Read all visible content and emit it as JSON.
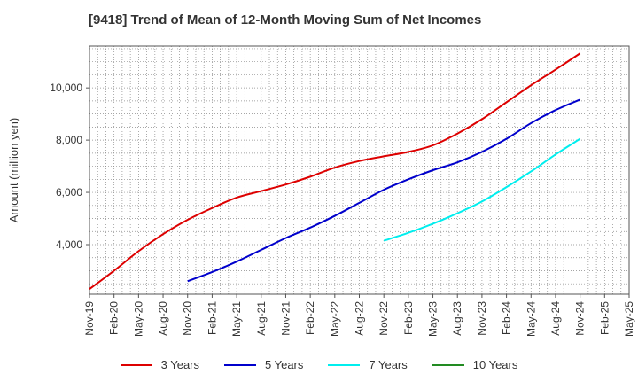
{
  "chart_data": {
    "type": "line",
    "title": "[9418]  Trend of Mean of 12-Month Moving Sum of Net Incomes",
    "ylabel": "Amount (million yen)",
    "xlabel": "",
    "x_ticks": [
      "Nov-19",
      "Feb-20",
      "May-20",
      "Aug-20",
      "Nov-20",
      "Feb-21",
      "May-21",
      "Aug-21",
      "Nov-21",
      "Feb-22",
      "May-22",
      "Aug-22",
      "Nov-22",
      "Feb-23",
      "May-23",
      "Aug-23",
      "Nov-23",
      "Feb-24",
      "May-24",
      "Aug-24",
      "Nov-24",
      "Feb-25",
      "May-25"
    ],
    "y_ticks": [
      4000,
      6000,
      8000,
      10000
    ],
    "y_tick_labels": [
      "4,000",
      "6,000",
      "8,000",
      "10,000"
    ],
    "ylim": [
      2100,
      11600
    ],
    "grid": true,
    "legend_position": "bottom",
    "series": [
      {
        "name": "3 Years",
        "color": "#dd0000",
        "points": [
          [
            "Nov-19",
            2300
          ],
          [
            "Feb-20",
            3000
          ],
          [
            "May-20",
            3750
          ],
          [
            "Aug-20",
            4400
          ],
          [
            "Nov-20",
            4950
          ],
          [
            "Feb-21",
            5400
          ],
          [
            "May-21",
            5800
          ],
          [
            "Aug-21",
            6050
          ],
          [
            "Nov-21",
            6300
          ],
          [
            "Feb-22",
            6600
          ],
          [
            "May-22",
            6950
          ],
          [
            "Aug-22",
            7200
          ],
          [
            "Nov-22",
            7380
          ],
          [
            "Feb-23",
            7550
          ],
          [
            "May-23",
            7800
          ],
          [
            "Aug-23",
            8250
          ],
          [
            "Nov-23",
            8800
          ],
          [
            "Feb-24",
            9450
          ],
          [
            "May-24",
            10100
          ],
          [
            "Aug-24",
            10700
          ],
          [
            "Nov-24",
            11320
          ]
        ]
      },
      {
        "name": "5 Years",
        "color": "#0000cc",
        "points": [
          [
            "Nov-20",
            2600
          ],
          [
            "Feb-21",
            2950
          ],
          [
            "May-21",
            3350
          ],
          [
            "Aug-21",
            3800
          ],
          [
            "Nov-21",
            4250
          ],
          [
            "Feb-22",
            4650
          ],
          [
            "May-22",
            5100
          ],
          [
            "Aug-22",
            5600
          ],
          [
            "Nov-22",
            6100
          ],
          [
            "Feb-23",
            6500
          ],
          [
            "May-23",
            6850
          ],
          [
            "Aug-23",
            7150
          ],
          [
            "Nov-23",
            7550
          ],
          [
            "Feb-24",
            8050
          ],
          [
            "May-24",
            8650
          ],
          [
            "Aug-24",
            9150
          ],
          [
            "Nov-24",
            9550
          ]
        ]
      },
      {
        "name": "7 Years",
        "color": "#00eeee",
        "points": [
          [
            "Nov-22",
            4150
          ],
          [
            "Feb-23",
            4450
          ],
          [
            "May-23",
            4800
          ],
          [
            "Aug-23",
            5200
          ],
          [
            "Nov-23",
            5650
          ],
          [
            "Feb-24",
            6200
          ],
          [
            "May-24",
            6800
          ],
          [
            "Aug-24",
            7450
          ],
          [
            "Nov-24",
            8050
          ]
        ]
      },
      {
        "name": "10 Years",
        "color": "#228b22",
        "points": []
      }
    ]
  }
}
